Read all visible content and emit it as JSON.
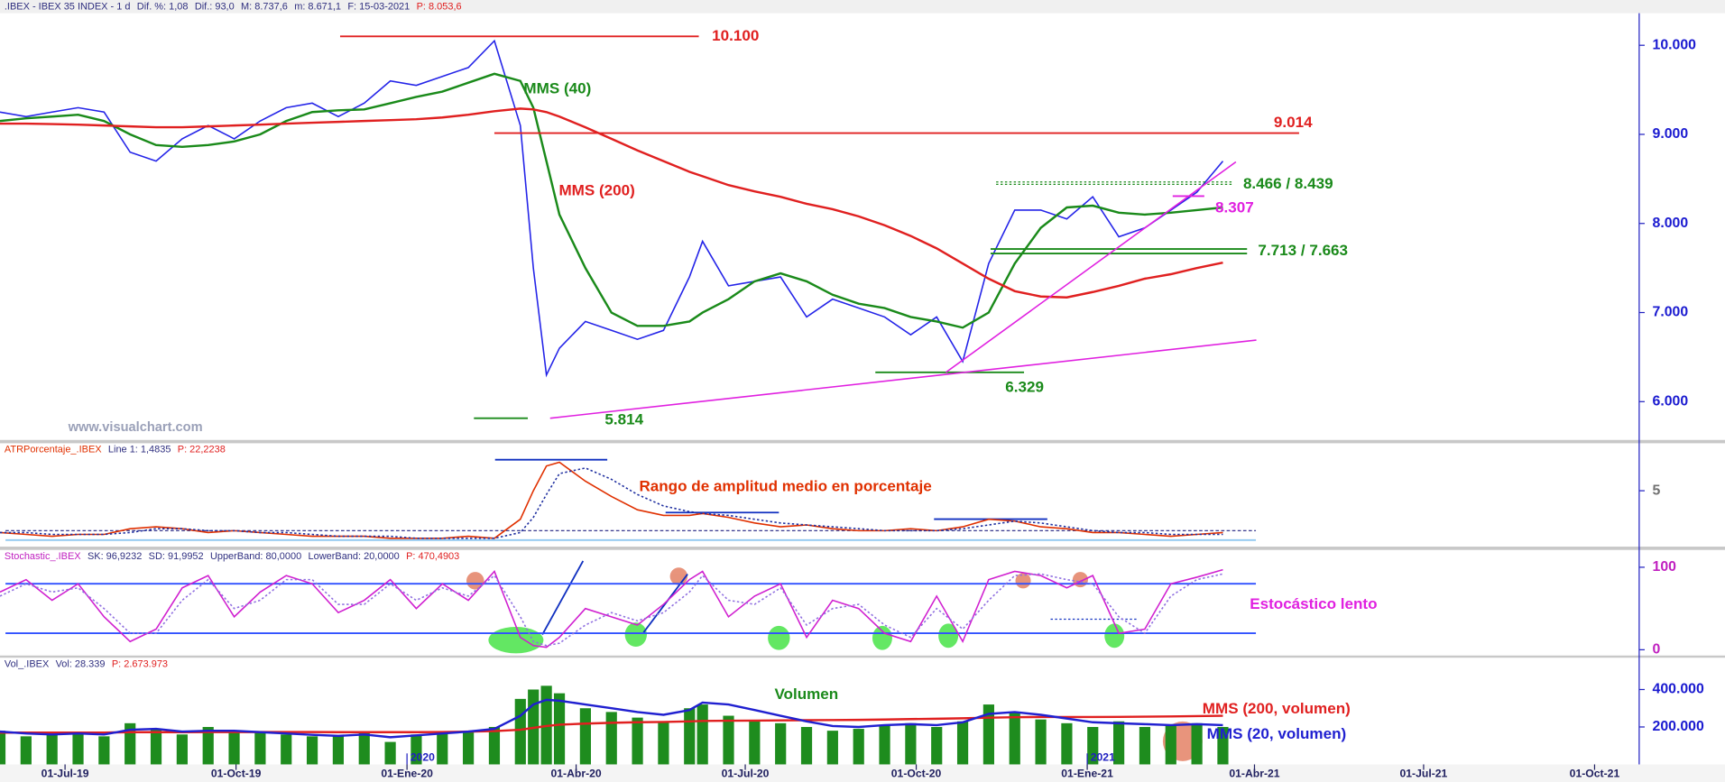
{
  "watermark": "www.visualchart.com",
  "chart_data": [
    {
      "type": "line",
      "header": [
        ".IBEX - IBEX 35 INDEX - 1 d",
        "Dif. %: 1,08",
        "Dif.: 93,0",
        "M: 8.737,6",
        "m: 8.671,1",
        "F: 15-03-2021",
        "P: 8.053,6"
      ],
      "x": [
        "2019-05-27",
        "2019-06-10",
        "2019-06-24",
        "2019-07-08",
        "2019-07-22",
        "2019-08-05",
        "2019-08-19",
        "2019-09-02",
        "2019-09-16",
        "2019-09-30",
        "2019-10-14",
        "2019-10-28",
        "2019-11-11",
        "2019-11-25",
        "2019-12-09",
        "2019-12-23",
        "2020-01-06",
        "2020-01-20",
        "2020-02-03",
        "2020-02-17",
        "2020-03-02",
        "2020-03-09",
        "2020-03-16",
        "2020-03-23",
        "2020-04-06",
        "2020-04-20",
        "2020-05-04",
        "2020-05-18",
        "2020-06-01",
        "2020-06-08",
        "2020-06-22",
        "2020-07-06",
        "2020-07-20",
        "2020-08-03",
        "2020-08-17",
        "2020-08-31",
        "2020-09-14",
        "2020-09-28",
        "2020-10-12",
        "2020-10-26",
        "2020-11-09",
        "2020-11-23",
        "2020-12-07",
        "2020-12-21",
        "2021-01-04",
        "2021-01-18",
        "2021-02-01",
        "2021-02-15",
        "2021-03-01",
        "2021-03-15"
      ],
      "xlim": [
        "2019-05-27",
        "2021-10-25"
      ],
      "ylim": [
        5570,
        10360
      ],
      "yticks": [
        {
          "value": 6000,
          "label": "6.000"
        },
        {
          "value": 7000,
          "label": "7.000"
        },
        {
          "value": 8000,
          "label": "8.000"
        },
        {
          "value": 9000,
          "label": "9.000"
        },
        {
          "value": 10000,
          "label": "10.000"
        }
      ],
      "series": [
        {
          "color": "#2424e8",
          "values": [
            9250,
            9200,
            9250,
            9300,
            9250,
            8800,
            8700,
            8950,
            9100,
            8950,
            9150,
            9300,
            9350,
            9200,
            9350,
            9600,
            9550,
            9650,
            9750,
            10050,
            9100,
            7500,
            6300,
            6600,
            6900,
            6800,
            6700,
            6800,
            7400,
            7800,
            7300,
            7350,
            7400,
            6950,
            7150,
            7050,
            6950,
            6750,
            6950,
            6450,
            7550,
            8150,
            8150,
            8050,
            8300,
            7850,
            7950,
            8150,
            8350,
            8700
          ]
        },
        {
          "name": "MMS (40)",
          "color": "#1a8a1a",
          "values": [
            9150,
            9180,
            9200,
            9220,
            9150,
            9000,
            8880,
            8860,
            8880,
            8920,
            9000,
            9150,
            9250,
            9270,
            9280,
            9350,
            9420,
            9480,
            9580,
            9680,
            9600,
            9300,
            8700,
            8100,
            7500,
            7000,
            6850,
            6850,
            6900,
            7000,
            7150,
            7350,
            7440,
            7350,
            7200,
            7100,
            7050,
            6950,
            6900,
            6830,
            7000,
            7550,
            7950,
            8180,
            8200,
            8120,
            8100,
            8120,
            8150,
            8180
          ]
        },
        {
          "name": "MMS (200)",
          "color": "#e02020",
          "values": [
            9120,
            9120,
            9115,
            9110,
            9100,
            9090,
            9080,
            9080,
            9090,
            9100,
            9110,
            9120,
            9130,
            9140,
            9150,
            9160,
            9170,
            9190,
            9220,
            9260,
            9290,
            9280,
            9250,
            9200,
            9080,
            8950,
            8820,
            8700,
            8580,
            8530,
            8430,
            8360,
            8300,
            8220,
            8160,
            8080,
            7980,
            7860,
            7720,
            7550,
            7380,
            7240,
            7180,
            7170,
            7230,
            7300,
            7380,
            7430,
            7500,
            7560
          ]
        }
      ],
      "levels": [
        {
          "values": [
            10100
          ],
          "label": "10.100",
          "from": "2019-11-26",
          "to": "2020-06-06",
          "color": "#e02020"
        },
        {
          "values": [
            9014
          ],
          "label": "9.014",
          "from": "2020-02-17",
          "to": "2021-04-25",
          "color": "#e02020"
        },
        {
          "values": [
            8466,
            8439
          ],
          "label": "8.466 / 8.439",
          "from": "2020-11-13",
          "to": "2021-03-20",
          "color": "#1a8a1a",
          "dashed": true
        },
        {
          "values": [
            8307
          ],
          "label": "8.307",
          "from": "2021-02-16",
          "to": "2021-03-05",
          "color": "#e020e0"
        },
        {
          "values": [
            7713,
            7663
          ],
          "label": "7.713 / 7.663",
          "from": "2020-11-10",
          "to": "2021-03-28",
          "color": "#1a8a1a"
        },
        {
          "values": [
            6329
          ],
          "label": "6.329",
          "from": "2020-09-09",
          "to": "2020-11-28",
          "color": "#1a8a1a"
        },
        {
          "values": [
            5814
          ],
          "label": "5.814",
          "from": "2020-02-06",
          "to": "2020-03-06",
          "color": "#1a8a1a"
        }
      ],
      "trendlines": [
        {
          "from": [
            "2020-03-18",
            5814
          ],
          "to": [
            "2021-04-02",
            6691
          ],
          "color": "#e020e0"
        },
        {
          "from": [
            "2020-10-17",
            6329
          ],
          "to": [
            "2021-03-22",
            8691
          ],
          "color": "#e020e0"
        }
      ]
    },
    {
      "type": "line",
      "header": [
        "ATRPorcentaje_.IBEX",
        "Line 1: 1,4835",
        "P: 22,2238"
      ],
      "annotation": "Rango de amplitud medio en porcentaje",
      "x": [
        "2019-05-27",
        "2019-06-10",
        "2019-06-24",
        "2019-07-08",
        "2019-07-22",
        "2019-08-05",
        "2019-08-19",
        "2019-09-02",
        "2019-09-16",
        "2019-09-30",
        "2019-10-14",
        "2019-10-28",
        "2019-11-11",
        "2019-11-25",
        "2019-12-09",
        "2019-12-23",
        "2020-01-06",
        "2020-01-20",
        "2020-02-03",
        "2020-02-17",
        "2020-03-02",
        "2020-03-09",
        "2020-03-16",
        "2020-03-23",
        "2020-04-06",
        "2020-04-20",
        "2020-05-04",
        "2020-05-18",
        "2020-06-01",
        "2020-06-08",
        "2020-06-22",
        "2020-07-06",
        "2020-07-20",
        "2020-08-03",
        "2020-08-17",
        "2020-08-31",
        "2020-09-14",
        "2020-09-28",
        "2020-10-12",
        "2020-10-26",
        "2020-11-09",
        "2020-11-23",
        "2020-12-07",
        "2020-12-21",
        "2021-01-04",
        "2021-01-18",
        "2021-02-01",
        "2021-02-15",
        "2021-03-01",
        "2021-03-15"
      ],
      "xlim": [
        "2019-05-27",
        "2021-10-25"
      ],
      "ylim": [
        2,
        7.5
      ],
      "yticks": [
        5
      ],
      "hlines": [
        {
          "value": 2.9,
          "color": "#202080",
          "dashed": true
        },
        {
          "value": 2.4,
          "color": "#90c8f0"
        }
      ],
      "series": [
        {
          "color": "#e03000",
          "values": [
            2.8,
            2.7,
            2.6,
            2.7,
            2.7,
            3.0,
            3.1,
            3.0,
            2.8,
            2.9,
            2.8,
            2.7,
            2.6,
            2.6,
            2.6,
            2.5,
            2.5,
            2.5,
            2.6,
            2.5,
            3.5,
            5.0,
            6.3,
            6.5,
            5.5,
            4.7,
            4.0,
            3.7,
            3.7,
            3.8,
            3.6,
            3.3,
            3.1,
            3.2,
            3.0,
            2.9,
            2.9,
            3.0,
            2.9,
            3.1,
            3.5,
            3.4,
            3.1,
            3.0,
            2.8,
            2.8,
            2.7,
            2.6,
            2.7,
            2.8
          ]
        },
        {
          "color": "#2030a0",
          "dashed": true,
          "values": [
            2.8,
            2.8,
            2.7,
            2.7,
            2.7,
            2.8,
            3.0,
            3.0,
            2.9,
            2.9,
            2.8,
            2.8,
            2.7,
            2.6,
            2.6,
            2.6,
            2.5,
            2.5,
            2.5,
            2.5,
            2.8,
            3.6,
            4.8,
            5.9,
            6.2,
            5.6,
            4.8,
            4.2,
            3.9,
            3.8,
            3.7,
            3.5,
            3.3,
            3.2,
            3.1,
            3.0,
            2.9,
            2.9,
            2.9,
            3.0,
            3.2,
            3.4,
            3.3,
            3.1,
            2.9,
            2.8,
            2.8,
            2.7,
            2.7,
            2.7
          ]
        }
      ]
    },
    {
      "type": "line",
      "header": [
        "Stochastic_.IBEX",
        "SK: 96,9232",
        "SD: 91,9952",
        "UpperBand: 80,0000",
        "LowerBand: 20,0000",
        "P: 470,4903"
      ],
      "annotation": "Estocástico lento",
      "x": [
        "2019-05-27",
        "2019-06-10",
        "2019-06-24",
        "2019-07-08",
        "2019-07-22",
        "2019-08-05",
        "2019-08-19",
        "2019-09-02",
        "2019-09-16",
        "2019-09-30",
        "2019-10-14",
        "2019-10-28",
        "2019-11-11",
        "2019-11-25",
        "2019-12-09",
        "2019-12-23",
        "2020-01-06",
        "2020-01-20",
        "2020-02-03",
        "2020-02-17",
        "2020-03-02",
        "2020-03-09",
        "2020-03-16",
        "2020-03-23",
        "2020-04-06",
        "2020-04-20",
        "2020-05-04",
        "2020-05-18",
        "2020-06-01",
        "2020-06-08",
        "2020-06-22",
        "2020-07-06",
        "2020-07-20",
        "2020-08-03",
        "2020-08-17",
        "2020-08-31",
        "2020-09-14",
        "2020-09-28",
        "2020-10-12",
        "2020-10-26",
        "2020-11-09",
        "2020-11-23",
        "2020-12-07",
        "2020-12-21",
        "2021-01-04",
        "2021-01-18",
        "2021-02-01",
        "2021-02-15",
        "2021-03-01",
        "2021-03-15"
      ],
      "xlim": [
        "2019-05-27",
        "2021-10-25"
      ],
      "ylim": [
        -7,
        121
      ],
      "yticks": [
        0,
        100
      ],
      "hlines": [
        {
          "value": 80,
          "color": "#3050ff"
        },
        {
          "value": 20,
          "color": "#3050ff"
        }
      ],
      "series": [
        {
          "color": "#d020d0",
          "values": [
            70,
            85,
            60,
            80,
            40,
            10,
            25,
            75,
            90,
            40,
            70,
            90,
            80,
            45,
            60,
            85,
            50,
            80,
            60,
            95,
            15,
            5,
            3,
            15,
            50,
            40,
            30,
            55,
            85,
            95,
            40,
            65,
            80,
            15,
            60,
            50,
            20,
            10,
            65,
            10,
            85,
            95,
            90,
            75,
            90,
            20,
            25,
            80,
            88,
            97
          ]
        },
        {
          "color": "#9070e0",
          "dashed": true,
          "values": [
            65,
            80,
            70,
            75,
            50,
            20,
            20,
            60,
            85,
            50,
            60,
            85,
            85,
            55,
            55,
            80,
            60,
            75,
            65,
            90,
            40,
            10,
            5,
            8,
            30,
            45,
            35,
            45,
            70,
            90,
            60,
            55,
            75,
            30,
            50,
            55,
            30,
            15,
            50,
            25,
            60,
            90,
            92,
            85,
            80,
            40,
            20,
            65,
            85,
            92
          ]
        }
      ]
    },
    {
      "type": "bar",
      "header": [
        "Vol_.IBEX",
        "Vol: 28.339",
        "P: 2.673.973"
      ],
      "annotation": "Volumen",
      "x": [
        "2019-05-27",
        "2019-06-10",
        "2019-06-24",
        "2019-07-08",
        "2019-07-22",
        "2019-08-05",
        "2019-08-19",
        "2019-09-02",
        "2019-09-16",
        "2019-09-30",
        "2019-10-14",
        "2019-10-28",
        "2019-11-11",
        "2019-11-25",
        "2019-12-09",
        "2019-12-23",
        "2020-01-06",
        "2020-01-20",
        "2020-02-03",
        "2020-02-17",
        "2020-03-02",
        "2020-03-09",
        "2020-03-16",
        "2020-03-23",
        "2020-04-06",
        "2020-04-20",
        "2020-05-04",
        "2020-05-18",
        "2020-06-01",
        "2020-06-08",
        "2020-06-22",
        "2020-07-06",
        "2020-07-20",
        "2020-08-03",
        "2020-08-17",
        "2020-08-31",
        "2020-09-14",
        "2020-09-28",
        "2020-10-12",
        "2020-10-26",
        "2020-11-09",
        "2020-11-23",
        "2020-12-07",
        "2020-12-21",
        "2021-01-04",
        "2021-01-18",
        "2021-02-01",
        "2021-02-15",
        "2021-03-01",
        "2021-03-15"
      ],
      "xlim": [
        "2019-05-27",
        "2021-10-25"
      ],
      "xticks": [
        {
          "value": "2019-07-01",
          "label": "01-Jul-19"
        },
        {
          "value": "2019-10-01",
          "label": "01-Oct-19"
        },
        {
          "value": "2020-01-01",
          "label": "01-Ene-20"
        },
        {
          "value": "2020-04-01",
          "label": "01-Abr-20"
        },
        {
          "value": "2020-07-01",
          "label": "01-Jul-20"
        },
        {
          "value": "2020-10-01",
          "label": "01-Oct-20"
        },
        {
          "value": "2021-01-01",
          "label": "01-Ene-21"
        },
        {
          "value": "2021-04-01",
          "label": "01-Abr-21"
        },
        {
          "value": "2021-07-01",
          "label": "01-Jul-21"
        },
        {
          "value": "2021-10-01",
          "label": "01-Oct-21"
        }
      ],
      "year_marks": [
        {
          "value": "2020-01-01",
          "label": "2020"
        },
        {
          "value": "2021-01-01",
          "label": "2021"
        }
      ],
      "ylim": [
        0,
        570000
      ],
      "yticks": [
        {
          "value": 200000,
          "label": "200.000"
        },
        {
          "value": 400000,
          "label": "400.000"
        }
      ],
      "color": "#1e8c1e",
      "values": [
        180000,
        150000,
        160000,
        170000,
        150000,
        220000,
        190000,
        160000,
        200000,
        180000,
        170000,
        160000,
        150000,
        150000,
        170000,
        120000,
        160000,
        170000,
        180000,
        200000,
        350000,
        400000,
        420000,
        380000,
        300000,
        280000,
        250000,
        230000,
        300000,
        320000,
        260000,
        230000,
        220000,
        200000,
        180000,
        190000,
        210000,
        220000,
        200000,
        230000,
        320000,
        280000,
        240000,
        220000,
        200000,
        230000,
        200000,
        210000,
        220000,
        200000
      ],
      "series": [
        {
          "name": "MMS (200, volumen)",
          "color": "#e02020",
          "values": [
            170000,
            170000,
            170000,
            170000,
            170000,
            172000,
            172000,
            172000,
            173000,
            173000,
            173000,
            173000,
            173000,
            172000,
            172000,
            172000,
            172000,
            173000,
            175000,
            178000,
            185000,
            195000,
            205000,
            212000,
            218000,
            222000,
            225000,
            227000,
            230000,
            232000,
            233000,
            234000,
            235000,
            236000,
            237000,
            238000,
            240000,
            242000,
            244000,
            246000,
            250000,
            252000,
            253000,
            253000,
            253000,
            254000,
            255000,
            256000,
            258000,
            260000
          ]
        },
        {
          "name": "MMS (20, volumen)",
          "color": "#2020d0",
          "values": [
            175000,
            165000,
            160000,
            165000,
            160000,
            185000,
            190000,
            175000,
            180000,
            180000,
            172000,
            165000,
            158000,
            152000,
            160000,
            145000,
            155000,
            165000,
            175000,
            190000,
            260000,
            320000,
            345000,
            340000,
            320000,
            300000,
            280000,
            265000,
            290000,
            330000,
            320000,
            290000,
            260000,
            230000,
            205000,
            200000,
            210000,
            215000,
            210000,
            225000,
            270000,
            280000,
            265000,
            245000,
            225000,
            220000,
            215000,
            210000,
            215000,
            210000
          ]
        }
      ]
    }
  ]
}
